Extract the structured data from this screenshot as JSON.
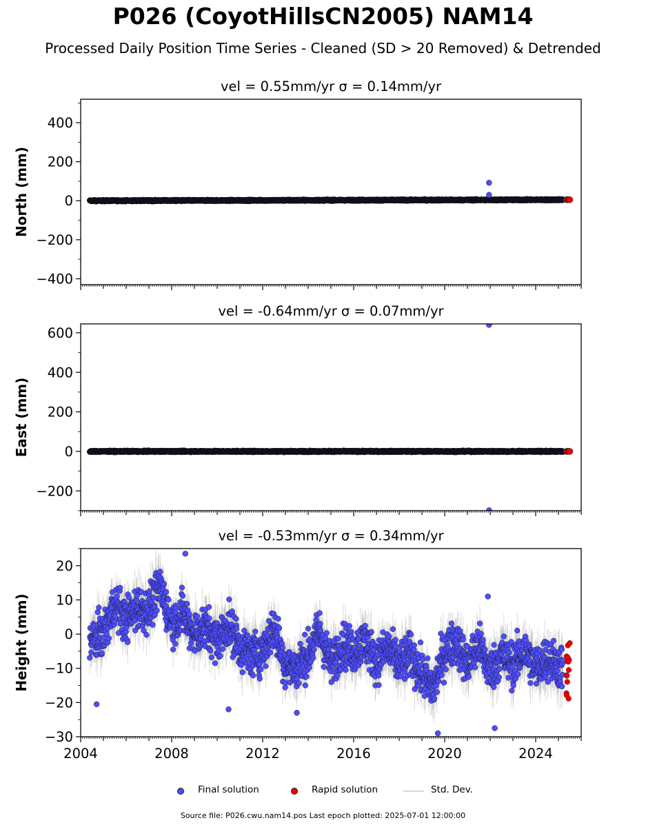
{
  "title": "P026 (CoyotHillsCN2005) NAM14",
  "subtitle": "Processed Daily Position Time Series - Cleaned (SD > 20 Removed) & Detrended",
  "legend": {
    "final": "Final solution",
    "rapid": "Rapid solution",
    "std": "Std. Dev."
  },
  "footer": "Source file: P026.cwu.nam14.pos  Last epoch plotted: 2025-07-01 12:00:00",
  "colors": {
    "final": "#4d4dff",
    "rapid": "#ee0000",
    "std": "#999999",
    "dense": "#0e0e3a"
  },
  "chart_data": [
    {
      "type": "scatter",
      "panel": "north",
      "title": "vel = 0.55mm/yr   σ = 0.14mm/yr",
      "ylabel": "North (mm)",
      "xlim": [
        2004.0,
        2026.0
      ],
      "ylim": [
        -430,
        520
      ],
      "yticks": [
        "400",
        "200",
        "0",
        "−200",
        "−400"
      ],
      "ytick_values": [
        400,
        200,
        0,
        -200,
        -400
      ],
      "xticks_shown": false,
      "series": [
        {
          "kind": "final",
          "x": [
            2004.4,
            2025.2
          ],
          "y_trend": [
            0,
            5
          ],
          "noise_mm": 3
        },
        {
          "kind": "rapid",
          "x": [
            2025.35,
            2025.5
          ],
          "y": 5
        }
      ],
      "outliers": [
        {
          "x": 2021.95,
          "y": 92
        },
        {
          "x": 2021.95,
          "y": 30
        }
      ]
    },
    {
      "type": "scatter",
      "panel": "east",
      "title": "vel = -0.64mm/yr   σ = 0.07mm/yr",
      "ylabel": "East (mm)",
      "xlim": [
        2004.0,
        2026.0
      ],
      "ylim": [
        -300,
        645
      ],
      "yticks": [
        "600",
        "400",
        "200",
        "0",
        "−200"
      ],
      "ytick_values": [
        600,
        400,
        200,
        0,
        -200
      ],
      "xticks_shown": false,
      "series": [
        {
          "kind": "final",
          "x": [
            2004.4,
            2025.2
          ],
          "y_trend": [
            0,
            0
          ],
          "noise_mm": 3
        },
        {
          "kind": "rapid",
          "x": [
            2025.35,
            2025.5
          ],
          "y": 0
        }
      ],
      "outliers": [
        {
          "x": 2021.95,
          "y": 640
        },
        {
          "x": 2021.95,
          "y": -298
        }
      ]
    },
    {
      "type": "scatter",
      "panel": "height",
      "title": "vel = -0.53mm/yr   σ = 0.34mm/yr",
      "ylabel": "Height (mm)",
      "xlim": [
        2004.0,
        2026.0
      ],
      "ylim": [
        -30,
        25
      ],
      "yticks": [
        "20",
        "10",
        "0",
        "−10",
        "−20",
        "−30"
      ],
      "ytick_values": [
        20,
        10,
        0,
        -10,
        -20,
        -30
      ],
      "xticks": [
        "2004",
        "2008",
        "2012",
        "2016",
        "2020",
        "2024"
      ],
      "xtick_values": [
        2004,
        2008,
        2012,
        2016,
        2020,
        2024
      ],
      "xticks_shown": true,
      "series": [
        {
          "kind": "final",
          "x": [
            2004.4,
            2025.2
          ],
          "profile": [
            [
              2004.4,
              -2
            ],
            [
              2005.0,
              0
            ],
            [
              2005.5,
              9
            ],
            [
              2006.0,
              4
            ],
            [
              2006.5,
              8
            ],
            [
              2007.0,
              7
            ],
            [
              2007.5,
              14
            ],
            [
              2008.0,
              3
            ],
            [
              2008.5,
              6
            ],
            [
              2009.0,
              0
            ],
            [
              2009.5,
              2
            ],
            [
              2010.0,
              -2
            ],
            [
              2010.5,
              3
            ],
            [
              2011.0,
              -4
            ],
            [
              2011.5,
              -6
            ],
            [
              2012.0,
              -5
            ],
            [
              2012.5,
              2
            ],
            [
              2013.0,
              -9
            ],
            [
              2013.5,
              -10
            ],
            [
              2014.0,
              -6
            ],
            [
              2014.5,
              1
            ],
            [
              2015.0,
              -9
            ],
            [
              2015.5,
              -3
            ],
            [
              2016.0,
              -5
            ],
            [
              2016.5,
              -2
            ],
            [
              2017.0,
              -8
            ],
            [
              2017.5,
              -4
            ],
            [
              2018.0,
              -9
            ],
            [
              2018.5,
              -6
            ],
            [
              2019.0,
              -12
            ],
            [
              2019.5,
              -16
            ],
            [
              2020.0,
              -5
            ],
            [
              2020.5,
              -2
            ],
            [
              2021.0,
              -9
            ],
            [
              2021.5,
              -3
            ],
            [
              2022.0,
              -11
            ],
            [
              2022.5,
              -6
            ],
            [
              2023.0,
              -9
            ],
            [
              2023.5,
              -5
            ],
            [
              2024.0,
              -10
            ],
            [
              2024.5,
              -7
            ],
            [
              2025.2,
              -10
            ]
          ],
          "noise_mm": 4.5
        },
        {
          "kind": "rapid",
          "x": [
            2025.35,
            2025.5
          ],
          "y_range": [
            -19,
            -2
          ]
        }
      ],
      "outliers": [
        {
          "x": 2004.7,
          "y": -20.5
        },
        {
          "x": 2008.6,
          "y": 23.5
        },
        {
          "x": 2010.5,
          "y": -22
        },
        {
          "x": 2013.5,
          "y": -23
        },
        {
          "x": 2019.7,
          "y": -29
        },
        {
          "x": 2022.2,
          "y": -27.5
        },
        {
          "x": 2021.9,
          "y": 11
        }
      ]
    }
  ]
}
